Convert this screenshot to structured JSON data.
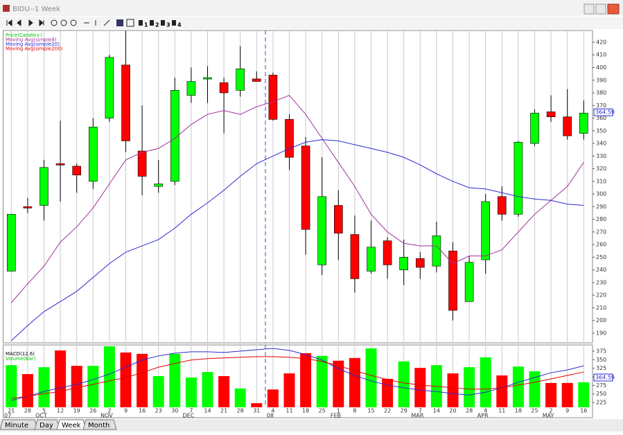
{
  "window": {
    "title": "BIDU--1 Week",
    "toolbar_labels": [
      "1",
      "2",
      "3",
      "4"
    ],
    "tabs": [
      "Minute",
      "Day",
      "Week",
      "Month"
    ]
  },
  "chart_data": [
    {
      "type": "candlestick",
      "open": [
        239,
        290,
        291,
        324,
        322,
        310,
        360,
        402,
        334,
        306,
        310,
        378,
        391,
        388,
        382,
        391,
        394,
        359,
        338,
        244,
        291,
        268,
        239,
        263,
        240,
        249,
        243,
        255,
        215,
        248,
        298,
        284,
        340,
        365,
        361,
        348
      ],
      "high": [
        284,
        297,
        327,
        358,
        324,
        360,
        410,
        429,
        370,
        327,
        392,
        400,
        401,
        392,
        417,
        397,
        396,
        363,
        345,
        329,
        303,
        283,
        279,
        266,
        264,
        254,
        278,
        262,
        251,
        300,
        306,
        342,
        367,
        378,
        383,
        374
      ],
      "low": [
        239,
        285,
        279,
        294,
        301,
        304,
        357,
        333,
        299,
        301,
        307,
        372,
        372,
        348,
        377,
        389,
        358,
        319,
        252,
        236,
        248,
        222,
        237,
        233,
        228,
        233,
        238,
        200,
        215,
        237,
        279,
        282,
        338,
        357,
        343,
        343
      ],
      "close": [
        284,
        289,
        321,
        323,
        315,
        353,
        408,
        342,
        314,
        308,
        382,
        389,
        392,
        380,
        399,
        389,
        359,
        329,
        272,
        298,
        269,
        233,
        258,
        244,
        250,
        242,
        267,
        208,
        246,
        294,
        284,
        341,
        364,
        361,
        346,
        364
      ],
      "up_color": "#00ff00",
      "down_color": "#ff0000",
      "lines": [
        {
          "color": "#a0309a",
          "values": [
            214,
            229,
            243,
            262,
            274,
            289,
            308,
            327,
            333,
            336,
            344,
            355,
            363,
            366,
            363,
            369,
            373,
            378,
            363,
            344,
            325,
            306,
            284,
            270,
            261,
            259,
            259,
            245,
            251,
            251,
            256,
            270,
            284,
            295,
            306,
            325
          ]
        },
        {
          "color": "#2a2ad0",
          "values": [
            184,
            196,
            207,
            215,
            223,
            234,
            245,
            254,
            259,
            264,
            273,
            284,
            293,
            303,
            314,
            324,
            330,
            336,
            341,
            343,
            342,
            339,
            336,
            333,
            329,
            323,
            316,
            310,
            305,
            304,
            301,
            298,
            296,
            295,
            292,
            291
          ]
        }
      ],
      "legend": [
        {
          "name": "Price(Candle+)",
          "color": "#00c000"
        },
        {
          "name": "Moving Avg(simple8)",
          "color": "#a0309a"
        },
        {
          "name": "Moving Avg(simple20)",
          "color": "#2a2ad0"
        },
        {
          "name": "Moving Avg(simple200)",
          "color": "#e00000"
        }
      ],
      "ylim": [
        182.3,
        429.3
      ],
      "yticks": [
        190,
        200,
        210,
        220,
        230,
        240,
        250,
        260,
        270,
        280,
        290,
        300,
        310,
        320,
        330,
        340,
        350,
        360,
        370,
        380,
        390,
        400,
        410,
        420
      ],
      "last_label": {
        "value": 364.59,
        "label": "364.59"
      }
    },
    {
      "type": "bar",
      "categories": [
        "21",
        "28",
        "5",
        "12",
        "19",
        "26",
        "2",
        "9",
        "16",
        "23",
        "30",
        "7",
        "14",
        "21",
        "28",
        "31",
        "4",
        "11",
        "18",
        "25",
        "1",
        "8",
        "15",
        "22",
        "29",
        "7",
        "14",
        "20",
        "28",
        "4",
        "11",
        "18",
        "25",
        "2",
        "9",
        "16"
      ],
      "months": [
        "07",
        null,
        "OCT",
        null,
        null,
        null,
        "NOV",
        null,
        null,
        null,
        null,
        "DEC",
        null,
        null,
        null,
        null,
        "08",
        null,
        null,
        null,
        "FEB",
        null,
        null,
        null,
        null,
        "MAR",
        null,
        null,
        null,
        "APR",
        null,
        null,
        null,
        "MAY",
        null,
        null
      ],
      "values": [
        334,
        308,
        328,
        377,
        332,
        332,
        389,
        371,
        367,
        302,
        367,
        298,
        314,
        302,
        266,
        223,
        263,
        310,
        369,
        361,
        347,
        355,
        383,
        294,
        345,
        326,
        334,
        310,
        328,
        357,
        304,
        330,
        316,
        282,
        282,
        284
      ],
      "lines": [
        {
          "color": "#2a2ad0",
          "values": [
            231,
            243,
            257,
            268,
            278,
            292,
            308,
            328,
            349,
            361,
            369,
            373,
            373,
            371,
            375,
            379,
            383,
            377,
            365,
            349,
            324,
            304,
            288,
            276,
            268,
            261,
            257,
            251,
            247,
            255,
            268,
            284,
            298,
            312,
            320,
            332
          ]
        },
        {
          "color": "#e00000",
          "values": [
            237,
            243,
            251,
            257,
            268,
            278,
            288,
            298,
            312,
            328,
            339,
            349,
            353,
            355,
            357,
            359,
            359,
            357,
            353,
            345,
            332,
            318,
            304,
            292,
            282,
            276,
            272,
            268,
            264,
            264,
            268,
            276,
            284,
            294,
            304,
            314
          ]
        }
      ],
      "legend": [
        {
          "name": "MACD(12,6)",
          "color": "#000000"
        },
        {
          "name": "Volume(Bar)",
          "color": "#00c000"
        }
      ],
      "ylim": [
        211,
        393
      ],
      "yticks": [
        225,
        250,
        275,
        300,
        325,
        350,
        375
      ],
      "last_label": "364.59"
    }
  ]
}
